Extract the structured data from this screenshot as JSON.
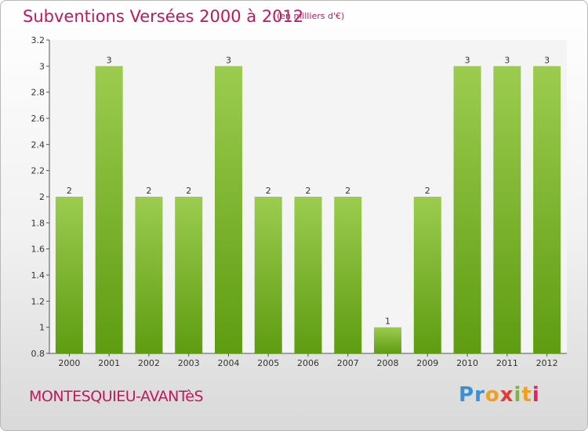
{
  "header": {
    "title": "Subventions Versées 2000 à 2012",
    "subtitle": "(en milliers d'€)"
  },
  "footer": {
    "commune": "MONTESQUIEU-AVANTèS",
    "logo": [
      "P",
      "r",
      "o",
      "x",
      "i",
      "t",
      "i"
    ]
  },
  "colors": {
    "bar_top": "#9ccc4f",
    "bar_bottom": "#5e9c12",
    "title": "#c2185b",
    "logo": [
      "#3b8fd8",
      "#3b8fd8",
      "#f0a020",
      "#e53935",
      "#7cb342",
      "#f0a020",
      "#e91e63"
    ]
  },
  "chart_data": {
    "type": "bar",
    "categories": [
      "2000",
      "2001",
      "2002",
      "2003",
      "2004",
      "2005",
      "2006",
      "2007",
      "2008",
      "2009",
      "2010",
      "2011",
      "2012"
    ],
    "values": [
      2,
      3,
      2,
      2,
      3,
      2,
      2,
      2,
      1,
      2,
      3,
      3,
      3
    ],
    "data_labels": [
      "2",
      "3",
      "2",
      "2",
      "3",
      "2",
      "2",
      "2",
      "1",
      "2",
      "3",
      "3",
      "3"
    ],
    "yticks": [
      0.8,
      1,
      1.2,
      1.4,
      1.6,
      1.8,
      2,
      2.2,
      2.4,
      2.6,
      2.8,
      3,
      3.2
    ],
    "ytick_labels": [
      "0.8",
      "1",
      "1.2",
      "1.4",
      "1.6",
      "1.8",
      "2",
      "2.2",
      "2.4",
      "2.6",
      "2.8",
      "3",
      "3.2"
    ],
    "ylim": [
      0.8,
      3.2
    ],
    "grid": false,
    "title": "Subventions Versées 2000 à 2012",
    "xlabel": "",
    "ylabel": ""
  }
}
